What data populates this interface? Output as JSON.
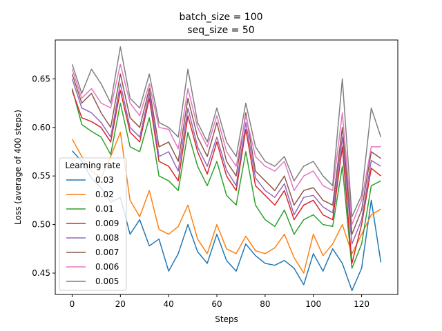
{
  "chart_data": {
    "type": "line",
    "title_line1": "batch_size = 100",
    "title_line2": "seq_size = 50",
    "xlabel": "Steps",
    "ylabel": "Loss (average of 400 steps)",
    "xlim": [
      -7,
      135
    ],
    "ylim": [
      0.428,
      0.69
    ],
    "xticks": [
      0,
      20,
      40,
      60,
      80,
      100,
      120
    ],
    "xtick_labels": [
      "0",
      "20",
      "40",
      "60",
      "80",
      "100",
      "120"
    ],
    "yticks": [
      0.45,
      0.5,
      0.55,
      0.6,
      0.65
    ],
    "ytick_labels": [
      "0.45",
      "0.50",
      "0.55",
      "0.60",
      "0.65"
    ],
    "legend_title": "Learning rate",
    "legend_position": "lower-left",
    "x": [
      0,
      4,
      8,
      12,
      16,
      20,
      24,
      28,
      32,
      36,
      40,
      44,
      48,
      52,
      56,
      60,
      64,
      68,
      72,
      76,
      80,
      84,
      88,
      92,
      96,
      100,
      104,
      108,
      112,
      116,
      120,
      124,
      128
    ],
    "series": [
      {
        "name": "0.03",
        "color": "#1f77b4",
        "values": [
          0.576,
          0.565,
          0.548,
          0.538,
          0.523,
          0.528,
          0.49,
          0.505,
          0.478,
          0.485,
          0.452,
          0.47,
          0.5,
          0.472,
          0.46,
          0.49,
          0.463,
          0.452,
          0.48,
          0.468,
          0.46,
          0.458,
          0.463,
          0.455,
          0.438,
          0.47,
          0.452,
          0.475,
          0.46,
          0.432,
          0.455,
          0.525,
          0.461
        ]
      },
      {
        "name": "0.02",
        "color": "#ff7f0e",
        "values": [
          0.588,
          0.57,
          0.555,
          0.548,
          0.57,
          0.595,
          0.525,
          0.508,
          0.535,
          0.495,
          0.49,
          0.498,
          0.52,
          0.485,
          0.47,
          0.5,
          0.475,
          0.47,
          0.488,
          0.473,
          0.47,
          0.476,
          0.49,
          0.466,
          0.45,
          0.49,
          0.468,
          0.48,
          0.5,
          0.47,
          0.49,
          0.51,
          0.516
        ]
      },
      {
        "name": "0.01",
        "color": "#2ca02c",
        "values": [
          0.64,
          0.603,
          0.596,
          0.59,
          0.572,
          0.625,
          0.58,
          0.575,
          0.61,
          0.55,
          0.545,
          0.535,
          0.595,
          0.56,
          0.54,
          0.565,
          0.53,
          0.52,
          0.575,
          0.52,
          0.505,
          0.498,
          0.515,
          0.49,
          0.505,
          0.51,
          0.5,
          0.498,
          0.56,
          0.455,
          0.48,
          0.54,
          0.545
        ]
      },
      {
        "name": "0.009",
        "color": "#d62728",
        "values": [
          0.638,
          0.61,
          0.606,
          0.6,
          0.585,
          0.638,
          0.595,
          0.585,
          0.63,
          0.565,
          0.56,
          0.545,
          0.612,
          0.575,
          0.552,
          0.585,
          0.55,
          0.535,
          0.598,
          0.54,
          0.53,
          0.52,
          0.535,
          0.505,
          0.52,
          0.525,
          0.51,
          0.505,
          0.58,
          0.46,
          0.5,
          0.558,
          0.55
        ]
      },
      {
        "name": "0.008",
        "color": "#9467bd",
        "values": [
          0.65,
          0.62,
          0.615,
          0.605,
          0.59,
          0.645,
          0.6,
          0.59,
          0.635,
          0.57,
          0.575,
          0.555,
          0.62,
          0.58,
          0.56,
          0.59,
          0.556,
          0.54,
          0.605,
          0.548,
          0.535,
          0.528,
          0.542,
          0.51,
          0.528,
          0.53,
          0.518,
          0.512,
          0.59,
          0.48,
          0.505,
          0.566,
          0.56
        ]
      },
      {
        "name": "0.007",
        "color": "#8c564b",
        "values": [
          0.655,
          0.625,
          0.635,
          0.615,
          0.6,
          0.655,
          0.61,
          0.6,
          0.64,
          0.58,
          0.585,
          0.565,
          0.63,
          0.59,
          0.57,
          0.605,
          0.565,
          0.55,
          0.615,
          0.555,
          0.545,
          0.535,
          0.55,
          0.52,
          0.535,
          0.538,
          0.525,
          0.52,
          0.6,
          0.49,
          0.515,
          0.575,
          0.568
        ]
      },
      {
        "name": "0.006",
        "color": "#e377c2",
        "values": [
          0.66,
          0.63,
          0.64,
          0.625,
          0.62,
          0.665,
          0.625,
          0.612,
          0.645,
          0.6,
          0.598,
          0.578,
          0.64,
          0.6,
          0.58,
          0.612,
          0.575,
          0.56,
          0.612,
          0.57,
          0.56,
          0.555,
          0.565,
          0.535,
          0.55,
          0.555,
          0.54,
          0.535,
          0.615,
          0.5,
          0.525,
          0.58,
          0.58
        ]
      },
      {
        "name": "0.005",
        "color": "#7f7f7f",
        "values": [
          0.665,
          0.635,
          0.66,
          0.645,
          0.625,
          0.683,
          0.63,
          0.62,
          0.655,
          0.605,
          0.6,
          0.59,
          0.66,
          0.605,
          0.585,
          0.62,
          0.585,
          0.57,
          0.625,
          0.58,
          0.565,
          0.56,
          0.57,
          0.545,
          0.56,
          0.565,
          0.55,
          0.54,
          0.65,
          0.508,
          0.53,
          0.62,
          0.59
        ]
      }
    ]
  }
}
